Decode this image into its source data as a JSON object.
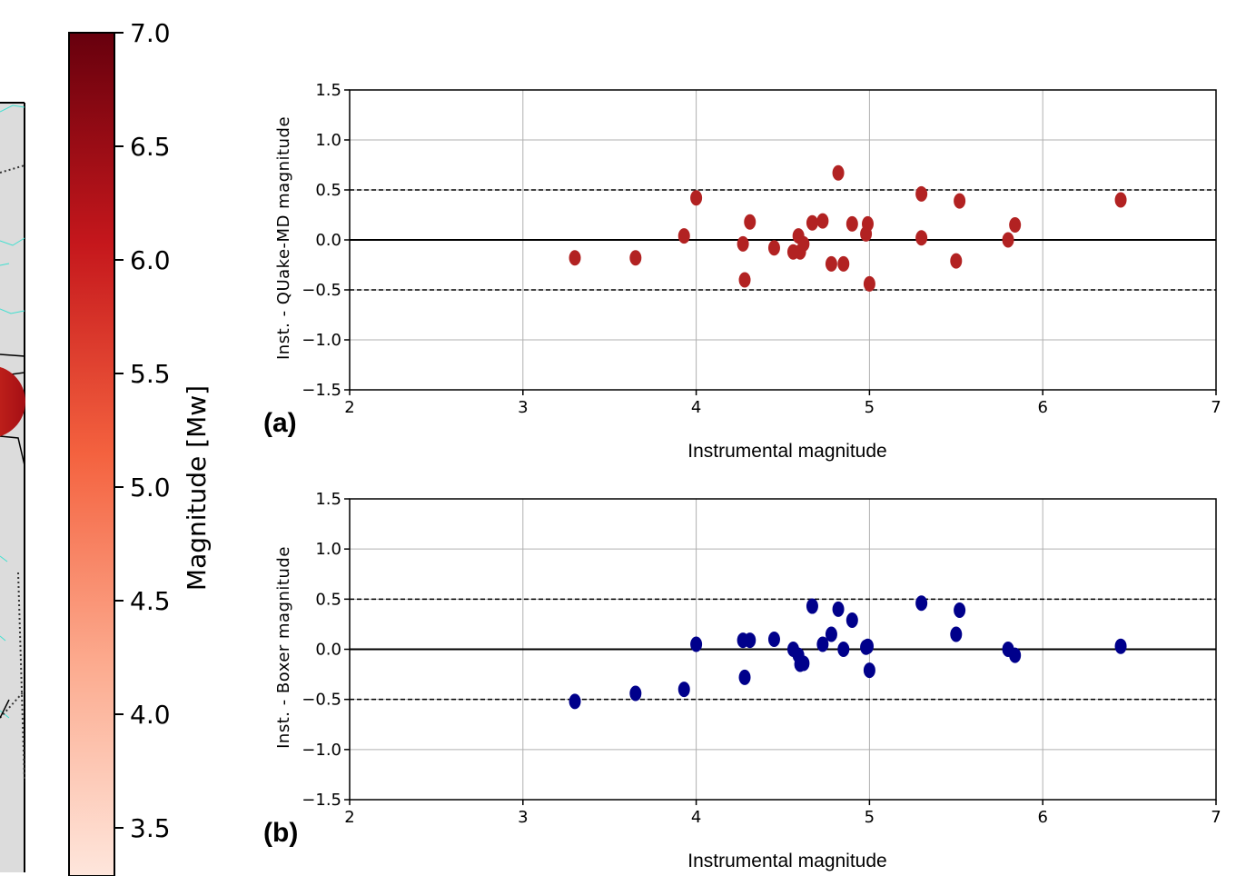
{
  "colors": {
    "panel_a_points": "#b22222",
    "panel_b_points": "#00008b",
    "grid": "#b0b0b0",
    "colorbar_low": "#fee6dc",
    "colorbar_mid": "#e9472f",
    "colorbar_high": "#67000d",
    "map_land": "#dcdcdc",
    "map_contour": "#40e0d0"
  },
  "colorbar": {
    "label": "Magnitude [Mw]",
    "ticks": [
      "3.5",
      "4.0",
      "4.5",
      "5.0",
      "5.5",
      "6.0",
      "6.5",
      "7.0"
    ],
    "range": [
      3.3,
      7.0
    ]
  },
  "chart_data": [
    {
      "type": "scatter",
      "panel_label": "(a)",
      "xlabel": "Instrumental magnitude",
      "ylabel": "Inst. - QUake-MD magnitude",
      "xlim": [
        2,
        7
      ],
      "ylim": [
        -1.5,
        1.5
      ],
      "xticks": [
        "2",
        "3",
        "4",
        "5",
        "6",
        "7"
      ],
      "yticks": [
        "−1.5",
        "−1.0",
        "−0.5",
        "0.0",
        "0.5",
        "1.0",
        "1.5"
      ],
      "grid": true,
      "reference_lines": [
        {
          "y": 0.0,
          "style": "solid"
        },
        {
          "y": 0.5,
          "style": "dashed"
        },
        {
          "y": -0.5,
          "style": "dashed"
        }
      ],
      "x": [
        3.3,
        3.65,
        3.93,
        4.0,
        4.27,
        4.28,
        4.31,
        4.45,
        4.56,
        4.59,
        4.6,
        4.62,
        4.67,
        4.73,
        4.78,
        4.82,
        4.85,
        4.9,
        4.98,
        4.99,
        5.0,
        5.3,
        5.3,
        5.5,
        5.52,
        5.8,
        5.84,
        6.45
      ],
      "y": [
        -0.18,
        -0.18,
        0.04,
        0.42,
        -0.04,
        -0.4,
        0.18,
        -0.08,
        -0.12,
        0.04,
        -0.12,
        -0.04,
        0.17,
        0.19,
        -0.24,
        0.67,
        -0.24,
        0.16,
        0.06,
        0.16,
        -0.44,
        0.46,
        0.02,
        -0.21,
        0.39,
        0.0,
        0.15,
        0.4
      ]
    },
    {
      "type": "scatter",
      "panel_label": "(b)",
      "xlabel": "Instrumental magnitude",
      "ylabel": "Inst. - Boxer magnitude",
      "xlim": [
        2,
        7
      ],
      "ylim": [
        -1.5,
        1.5
      ],
      "xticks": [
        "2",
        "3",
        "4",
        "5",
        "6",
        "7"
      ],
      "yticks": [
        "−1.5",
        "−1.0",
        "−0.5",
        "0.0",
        "0.5",
        "1.0",
        "1.5"
      ],
      "grid": true,
      "reference_lines": [
        {
          "y": 0.0,
          "style": "solid"
        },
        {
          "y": 0.5,
          "style": "dashed"
        },
        {
          "y": -0.5,
          "style": "dashed"
        }
      ],
      "x": [
        3.3,
        3.65,
        3.93,
        4.0,
        4.27,
        4.28,
        4.31,
        4.45,
        4.56,
        4.59,
        4.6,
        4.62,
        4.67,
        4.73,
        4.78,
        4.82,
        4.85,
        4.9,
        4.98,
        4.99,
        5.0,
        5.3,
        5.5,
        5.52,
        5.8,
        5.84,
        6.45
      ],
      "y": [
        -0.52,
        -0.44,
        -0.4,
        0.05,
        0.09,
        -0.28,
        0.09,
        0.1,
        0.0,
        -0.06,
        -0.15,
        -0.14,
        0.43,
        0.05,
        0.15,
        0.4,
        0.0,
        0.29,
        0.02,
        0.03,
        -0.21,
        0.46,
        0.15,
        0.39,
        0.0,
        -0.06,
        0.03
      ]
    }
  ]
}
